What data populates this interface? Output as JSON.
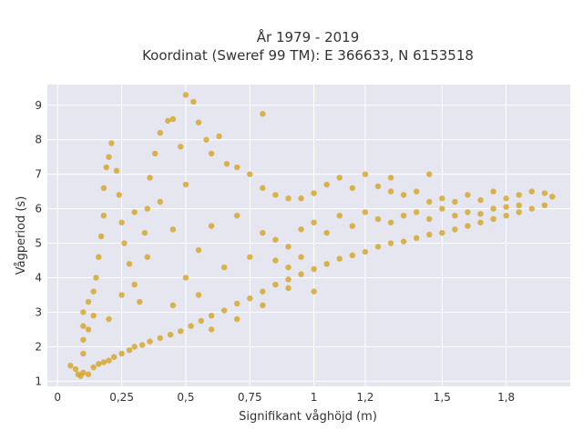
{
  "chart_data": {
    "type": "scatter",
    "title_lines": [
      "År 1979 - 2019",
      "Koordinat (Sweref 99 TM): E 366633, N 6153518"
    ],
    "xlabel": "Signifikant våghöjd (m)",
    "ylabel": "Vågperiod (s)",
    "xlim": [
      -0.04,
      2.0
    ],
    "ylim": [
      0.85,
      9.6
    ],
    "x_ticks": [
      {
        "value": 0,
        "label": "0"
      },
      {
        "value": 0.25,
        "label": "0,25"
      },
      {
        "value": 0.5,
        "label": "0,5"
      },
      {
        "value": 0.75,
        "label": "0,75"
      },
      {
        "value": 1.0,
        "label": "1"
      },
      {
        "value": 1.2,
        "label": "1,2"
      },
      {
        "value": 1.5,
        "label": "1,5"
      },
      {
        "value": 1.75,
        "label": "1,8"
      }
    ],
    "y_ticks": [
      {
        "value": 1,
        "label": "1"
      },
      {
        "value": 2,
        "label": "2"
      },
      {
        "value": 3,
        "label": "3"
      },
      {
        "value": 4,
        "label": "4"
      },
      {
        "value": 5,
        "label": "5"
      },
      {
        "value": 6,
        "label": "6"
      },
      {
        "value": 7,
        "label": "7"
      },
      {
        "value": 8,
        "label": "8"
      },
      {
        "value": 9,
        "label": "9"
      }
    ],
    "grid": true,
    "series": [
      {
        "color": "#D4A420",
        "points": [
          [
            0.05,
            1.45
          ],
          [
            0.07,
            1.35
          ],
          [
            0.08,
            1.2
          ],
          [
            0.09,
            1.15
          ],
          [
            0.1,
            1.25
          ],
          [
            0.12,
            1.2
          ],
          [
            0.14,
            1.4
          ],
          [
            0.16,
            1.5
          ],
          [
            0.18,
            1.55
          ],
          [
            0.2,
            1.6
          ],
          [
            0.22,
            1.7
          ],
          [
            0.25,
            1.8
          ],
          [
            0.28,
            1.9
          ],
          [
            0.3,
            2.0
          ],
          [
            0.33,
            2.05
          ],
          [
            0.36,
            2.15
          ],
          [
            0.4,
            2.25
          ],
          [
            0.44,
            2.35
          ],
          [
            0.48,
            2.45
          ],
          [
            0.52,
            2.6
          ],
          [
            0.56,
            2.75
          ],
          [
            0.6,
            2.9
          ],
          [
            0.65,
            3.05
          ],
          [
            0.7,
            3.25
          ],
          [
            0.75,
            3.4
          ],
          [
            0.8,
            3.6
          ],
          [
            0.85,
            3.8
          ],
          [
            0.9,
            3.95
          ],
          [
            0.95,
            4.1
          ],
          [
            1.0,
            4.25
          ],
          [
            1.05,
            4.4
          ],
          [
            1.1,
            4.55
          ],
          [
            1.15,
            4.65
          ],
          [
            1.2,
            4.75
          ],
          [
            1.25,
            4.9
          ],
          [
            1.3,
            5.0
          ],
          [
            1.35,
            5.05
          ],
          [
            1.4,
            5.15
          ],
          [
            1.45,
            5.25
          ],
          [
            1.5,
            5.3
          ],
          [
            1.55,
            5.4
          ],
          [
            1.6,
            5.5
          ],
          [
            1.65,
            5.6
          ],
          [
            1.7,
            5.7
          ],
          [
            1.75,
            5.8
          ],
          [
            1.8,
            5.9
          ],
          [
            1.85,
            6.0
          ],
          [
            1.9,
            6.1
          ],
          [
            1.93,
            6.35
          ],
          [
            0.1,
            1.8
          ],
          [
            0.1,
            2.2
          ],
          [
            0.1,
            2.6
          ],
          [
            0.1,
            3.0
          ],
          [
            0.12,
            2.5
          ],
          [
            0.12,
            3.3
          ],
          [
            0.14,
            2.9
          ],
          [
            0.14,
            3.6
          ],
          [
            0.15,
            4.0
          ],
          [
            0.16,
            4.6
          ],
          [
            0.17,
            5.2
          ],
          [
            0.18,
            5.8
          ],
          [
            0.18,
            6.6
          ],
          [
            0.19,
            7.2
          ],
          [
            0.2,
            7.5
          ],
          [
            0.21,
            7.9
          ],
          [
            0.23,
            7.1
          ],
          [
            0.24,
            6.4
          ],
          [
            0.25,
            5.6
          ],
          [
            0.26,
            5.0
          ],
          [
            0.28,
            4.4
          ],
          [
            0.3,
            3.8
          ],
          [
            0.32,
            3.3
          ],
          [
            0.34,
            5.3
          ],
          [
            0.35,
            6.0
          ],
          [
            0.36,
            6.9
          ],
          [
            0.38,
            7.6
          ],
          [
            0.4,
            8.2
          ],
          [
            0.43,
            8.55
          ],
          [
            0.45,
            8.6
          ],
          [
            0.48,
            7.8
          ],
          [
            0.5,
            9.3
          ],
          [
            0.53,
            9.1
          ],
          [
            0.55,
            8.5
          ],
          [
            0.58,
            8.0
          ],
          [
            0.6,
            7.6
          ],
          [
            0.63,
            8.1
          ],
          [
            0.66,
            7.3
          ],
          [
            0.7,
            7.2
          ],
          [
            0.75,
            7.0
          ],
          [
            0.8,
            8.75
          ],
          [
            0.8,
            6.6
          ],
          [
            0.85,
            6.4
          ],
          [
            0.9,
            6.3
          ],
          [
            0.95,
            6.3
          ],
          [
            1.0,
            6.45
          ],
          [
            1.05,
            6.7
          ],
          [
            1.1,
            6.9
          ],
          [
            1.15,
            6.6
          ],
          [
            1.25,
            6.65
          ],
          [
            1.3,
            6.5
          ],
          [
            1.35,
            6.4
          ],
          [
            1.4,
            6.5
          ],
          [
            1.45,
            6.2
          ],
          [
            1.5,
            6.3
          ],
          [
            1.55,
            6.2
          ],
          [
            1.6,
            6.4
          ],
          [
            1.65,
            6.25
          ],
          [
            1.7,
            6.5
          ],
          [
            1.75,
            6.3
          ],
          [
            1.8,
            6.4
          ],
          [
            1.85,
            6.5
          ],
          [
            1.9,
            6.45
          ],
          [
            1.2,
            7.0
          ],
          [
            1.45,
            7.0
          ],
          [
            1.3,
            6.9
          ],
          [
            0.55,
            4.8
          ],
          [
            0.6,
            5.5
          ],
          [
            0.65,
            4.3
          ],
          [
            0.7,
            5.8
          ],
          [
            0.45,
            3.2
          ],
          [
            0.5,
            4.0
          ],
          [
            0.55,
            3.5
          ],
          [
            0.35,
            4.6
          ],
          [
            0.3,
            5.9
          ],
          [
            0.4,
            6.2
          ],
          [
            0.45,
            5.4
          ],
          [
            0.5,
            6.7
          ],
          [
            0.25,
            3.5
          ],
          [
            0.2,
            2.8
          ],
          [
            0.85,
            5.1
          ],
          [
            0.9,
            4.9
          ],
          [
            0.95,
            5.4
          ],
          [
            1.0,
            5.6
          ],
          [
            1.05,
            5.3
          ],
          [
            1.1,
            5.8
          ],
          [
            1.15,
            5.5
          ],
          [
            1.2,
            5.9
          ],
          [
            1.25,
            5.7
          ],
          [
            1.3,
            5.6
          ],
          [
            1.35,
            5.8
          ],
          [
            1.4,
            5.9
          ],
          [
            1.45,
            5.7
          ],
          [
            1.5,
            6.0
          ],
          [
            1.55,
            5.8
          ],
          [
            1.6,
            5.9
          ],
          [
            1.65,
            5.85
          ],
          [
            1.7,
            6.0
          ],
          [
            1.75,
            6.05
          ],
          [
            1.8,
            6.1
          ],
          [
            0.75,
            4.6
          ],
          [
            0.8,
            5.3
          ],
          [
            0.85,
            4.5
          ],
          [
            0.9,
            4.3
          ],
          [
            0.95,
            4.6
          ],
          [
            1.0,
            3.6
          ],
          [
            0.9,
            3.7
          ],
          [
            0.8,
            3.2
          ],
          [
            0.7,
            2.8
          ],
          [
            0.6,
            2.5
          ]
        ]
      }
    ]
  }
}
